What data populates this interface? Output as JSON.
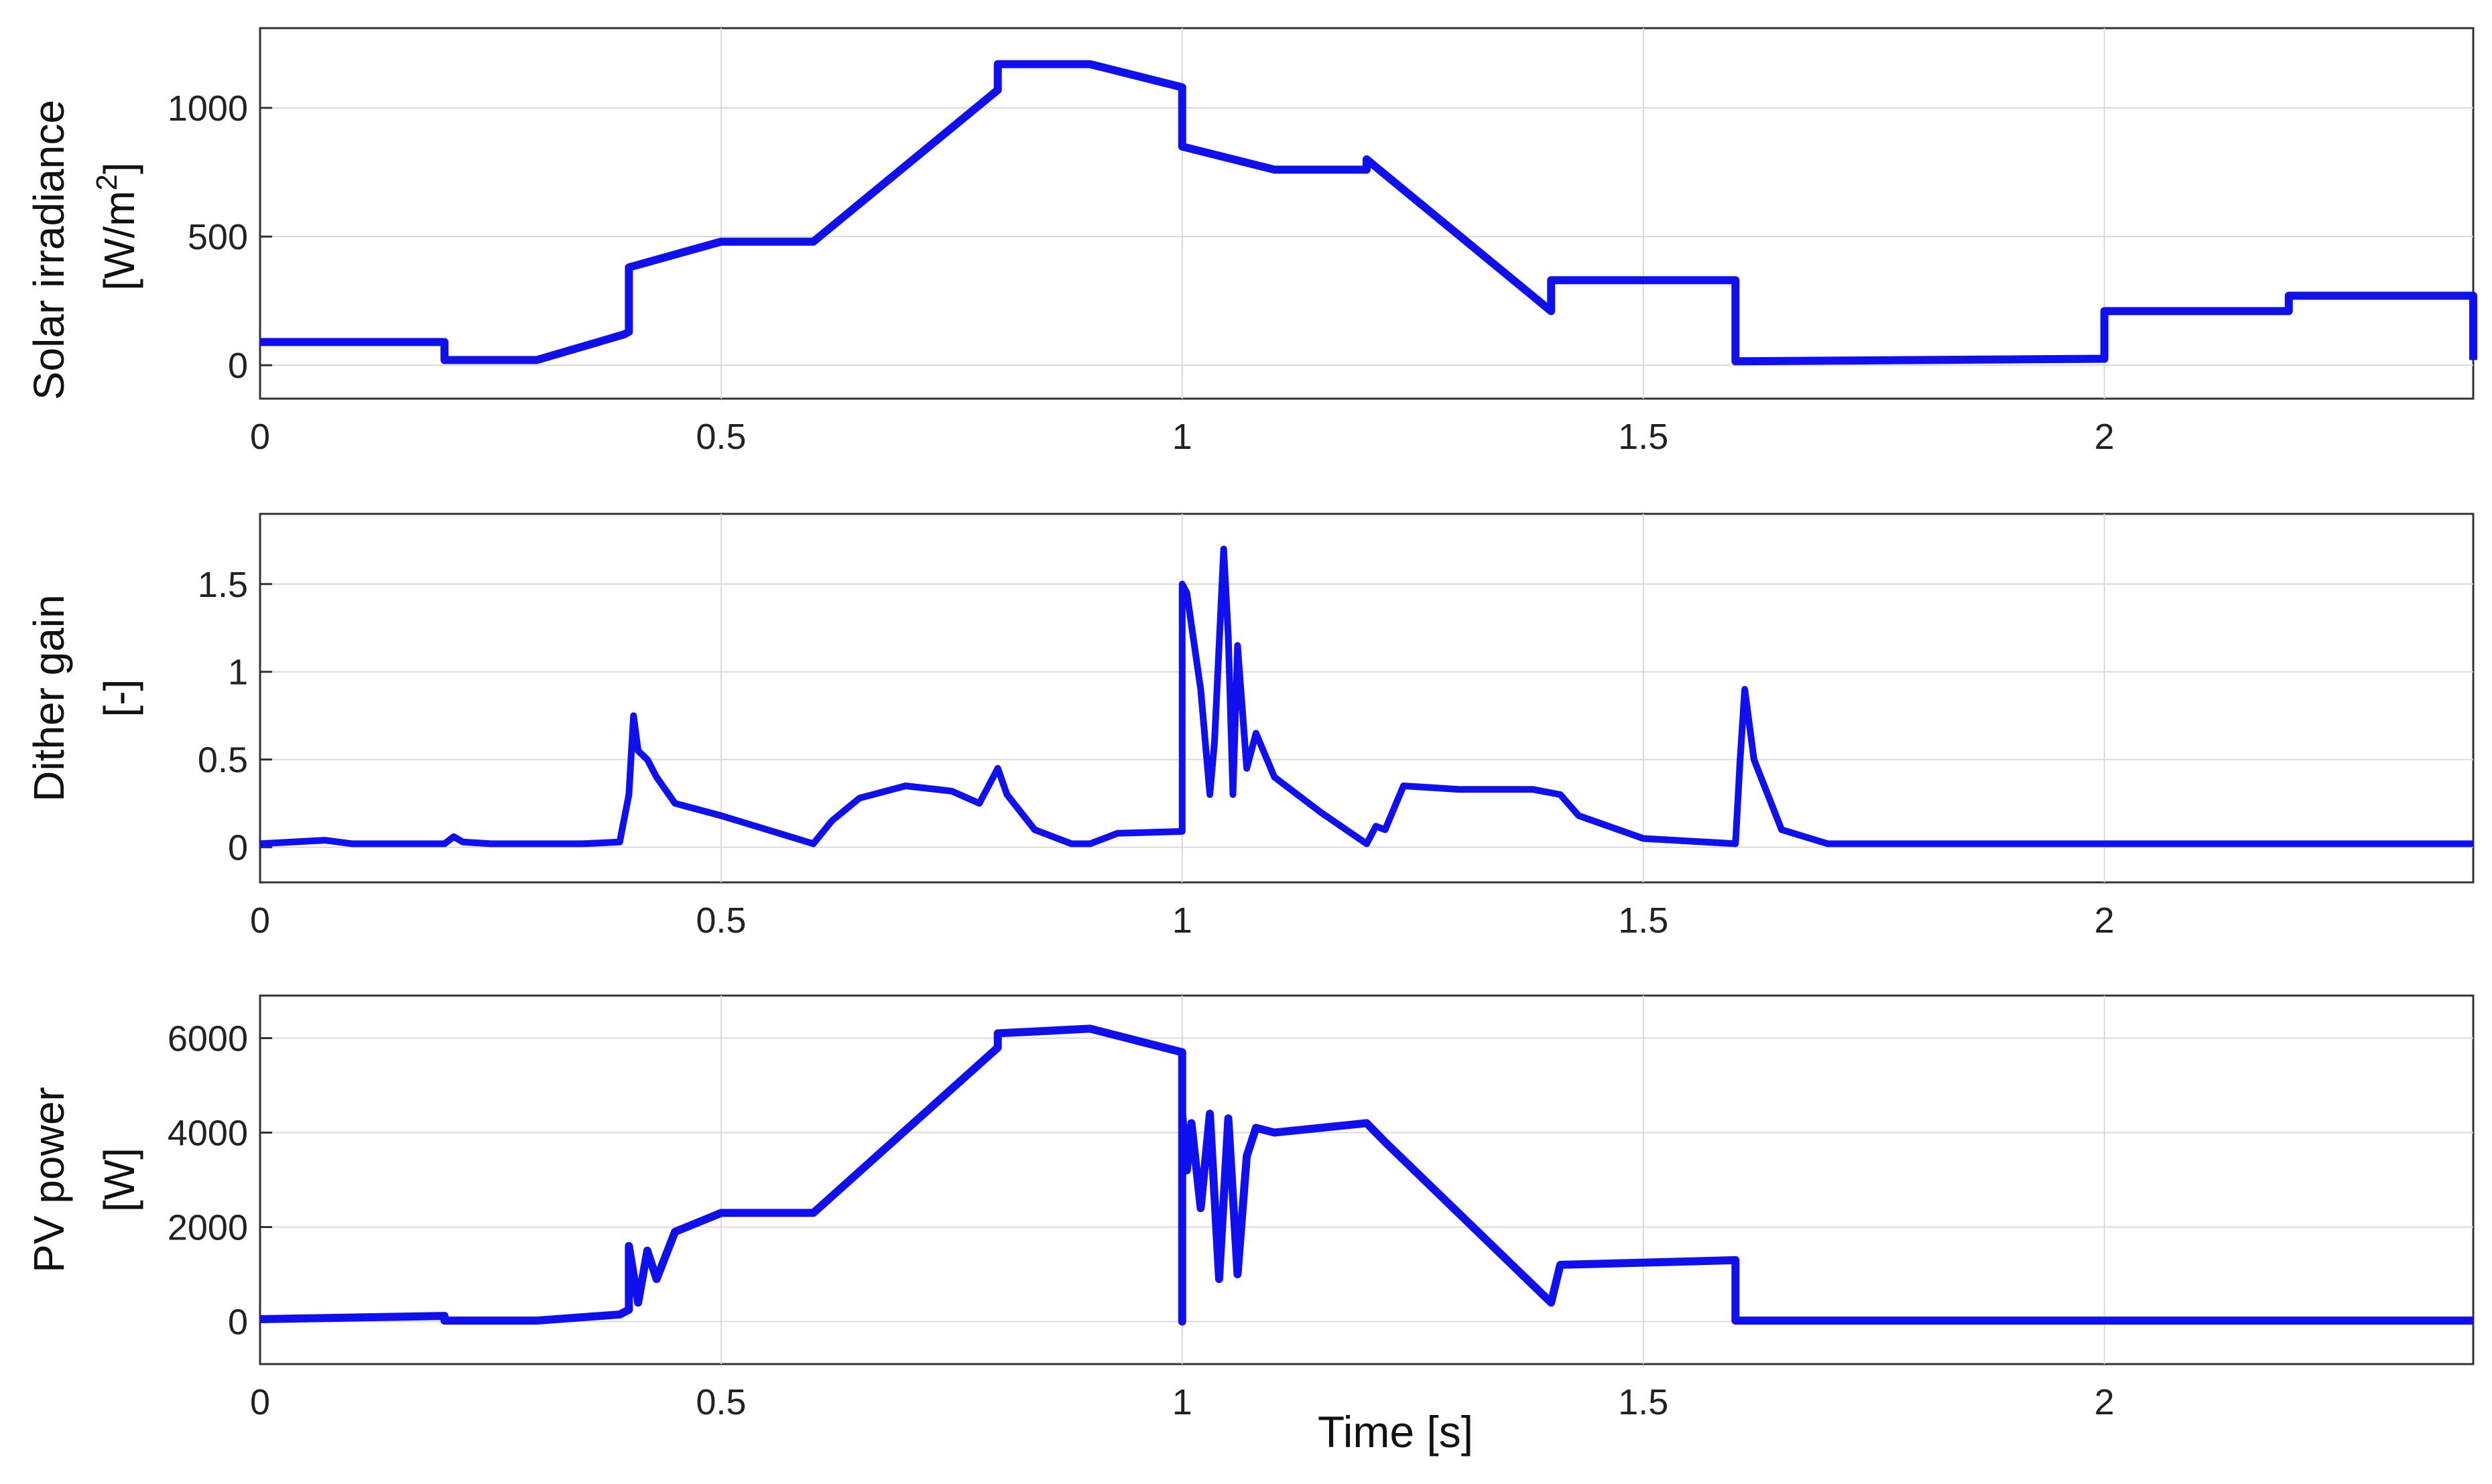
{
  "figure": {
    "xlabel": "Time [s]",
    "line_color": "#1010ee"
  },
  "chart_data": [
    {
      "type": "line",
      "id": "irradiance",
      "ylabel_line1": "Solar irradiance",
      "ylabel_line2_pre": "[W/m",
      "ylabel_line2_sup": "2",
      "ylabel_line2_post": "]",
      "xlim": [
        0,
        2.4
      ],
      "ylim": [
        -130,
        1310
      ],
      "xticks": [
        0,
        0.5,
        1,
        1.5,
        2
      ],
      "xtick_labels": [
        "0",
        "0.5",
        "1",
        "1.5",
        "2"
      ],
      "yticks": [
        0,
        500,
        1000
      ],
      "ytick_labels": [
        "0",
        "500",
        "1000"
      ],
      "series": [
        {
          "name": "Solar irradiance",
          "x": [
            0,
            0.2,
            0.2,
            0.3,
            0.395,
            0.4,
            0.4,
            0.5,
            0.6,
            0.8,
            0.8,
            0.9,
            1.0,
            1.0,
            1.1,
            1.2,
            1.2,
            1.4,
            1.4,
            1.6,
            1.6,
            1.8,
            2.0,
            2.0,
            2.2,
            2.2,
            2.4,
            2.4
          ],
          "y": [
            90,
            90,
            20,
            20,
            120,
            130,
            380,
            480,
            480,
            1070,
            1170,
            1170,
            1080,
            850,
            760,
            760,
            800,
            210,
            330,
            330,
            15,
            20,
            25,
            210,
            210,
            270,
            270,
            20
          ]
        }
      ],
      "grid": true
    },
    {
      "type": "line",
      "id": "dither-gain",
      "ylabel_line1": "Dither gain",
      "ylabel_line2": "[-]",
      "xlim": [
        0,
        2.4
      ],
      "ylim": [
        -0.2,
        1.9
      ],
      "xticks": [
        0,
        0.5,
        1,
        1.5,
        2
      ],
      "xtick_labels": [
        "0",
        "0.5",
        "1",
        "1.5",
        "2"
      ],
      "yticks": [
        0,
        0.5,
        1,
        1.5
      ],
      "ytick_labels": [
        "0",
        "0.5",
        "1",
        "1.5"
      ],
      "series": [
        {
          "name": "Dither gain",
          "x": [
            0,
            0.07,
            0.1,
            0.2,
            0.21,
            0.22,
            0.25,
            0.35,
            0.39,
            0.4,
            0.405,
            0.41,
            0.42,
            0.43,
            0.45,
            0.5,
            0.55,
            0.6,
            0.62,
            0.65,
            0.7,
            0.75,
            0.78,
            0.8,
            0.81,
            0.84,
            0.88,
            0.9,
            0.93,
            1.0,
            1.0,
            1.005,
            1.02,
            1.03,
            1.035,
            1.045,
            1.05,
            1.055,
            1.06,
            1.07,
            1.08,
            1.1,
            1.15,
            1.2,
            1.21,
            1.22,
            1.24,
            1.3,
            1.38,
            1.41,
            1.43,
            1.5,
            1.6,
            1.605,
            1.61,
            1.62,
            1.65,
            1.7,
            2.0,
            2.4
          ],
          "y": [
            0.02,
            0.04,
            0.02,
            0.02,
            0.06,
            0.03,
            0.02,
            0.02,
            0.03,
            0.3,
            0.75,
            0.55,
            0.5,
            0.4,
            0.25,
            0.18,
            0.1,
            0.02,
            0.15,
            0.28,
            0.35,
            0.32,
            0.25,
            0.45,
            0.3,
            0.1,
            0.02,
            0.02,
            0.08,
            0.09,
            1.5,
            1.45,
            0.9,
            0.3,
            0.6,
            1.7,
            1.2,
            0.3,
            1.15,
            0.45,
            0.65,
            0.4,
            0.2,
            0.02,
            0.12,
            0.1,
            0.35,
            0.33,
            0.33,
            0.3,
            0.18,
            0.05,
            0.02,
            0.5,
            0.9,
            0.5,
            0.1,
            0.02,
            0.02,
            0.02
          ]
        }
      ],
      "grid": true
    },
    {
      "type": "line",
      "id": "pv-power",
      "ylabel_line1": "PV power",
      "ylabel_line2": "[W]",
      "xlim": [
        0,
        2.4
      ],
      "ylim": [
        -900,
        6900
      ],
      "xticks": [
        0,
        0.5,
        1,
        1.5,
        2
      ],
      "xtick_labels": [
        "0",
        "0.5",
        "1",
        "1.5",
        "2"
      ],
      "yticks": [
        0,
        2000,
        4000,
        6000
      ],
      "ytick_labels": [
        "0",
        "2000",
        "4000",
        "6000"
      ],
      "series": [
        {
          "name": "PV power",
          "x": [
            0,
            0.2,
            0.2,
            0.3,
            0.39,
            0.4,
            0.4,
            0.41,
            0.42,
            0.43,
            0.45,
            0.5,
            0.6,
            0.8,
            0.8,
            0.9,
            1.0,
            1.0,
            1.0,
            1.005,
            1.01,
            1.02,
            1.03,
            1.04,
            1.05,
            1.06,
            1.07,
            1.08,
            1.1,
            1.2,
            1.22,
            1.4,
            1.41,
            1.6,
            1.6,
            2.0,
            2.4
          ],
          "y": [
            50,
            120,
            20,
            20,
            150,
            250,
            1600,
            400,
            1500,
            900,
            1900,
            2300,
            2300,
            5800,
            6100,
            6200,
            5700,
            0,
            4400,
            3200,
            4200,
            2400,
            4400,
            900,
            4300,
            1000,
            3500,
            4100,
            4000,
            4200,
            3800,
            400,
            1200,
            1300,
            20,
            20,
            20
          ]
        }
      ],
      "grid": true
    }
  ]
}
